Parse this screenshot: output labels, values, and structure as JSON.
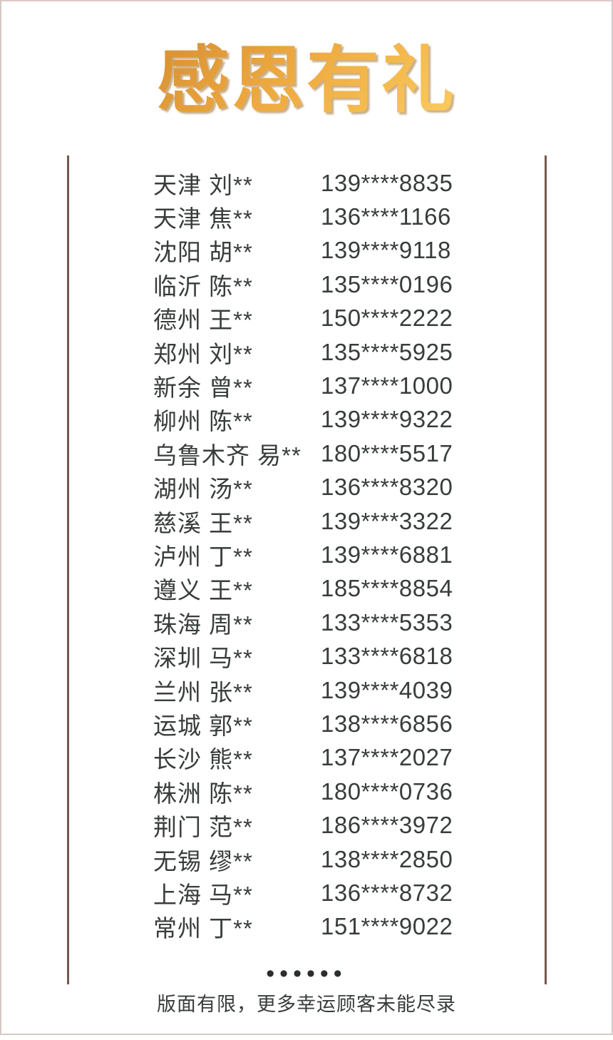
{
  "title": "感恩有礼",
  "list": {
    "rows": [
      {
        "name": "天津 刘**",
        "phone": "139****8835"
      },
      {
        "name": "天津 焦**",
        "phone": "136****1166"
      },
      {
        "name": "沈阳 胡**",
        "phone": "139****9118"
      },
      {
        "name": "临沂 陈**",
        "phone": "135****0196"
      },
      {
        "name": "德州 王**",
        "phone": "150****2222"
      },
      {
        "name": "郑州 刘**",
        "phone": "135****5925"
      },
      {
        "name": "新余 曾**",
        "phone": "137****1000"
      },
      {
        "name": "柳州 陈**",
        "phone": "139****9322"
      },
      {
        "name": "乌鲁木齐 易**",
        "phone": "180****5517"
      },
      {
        "name": "湖州 汤**",
        "phone": "136****8320"
      },
      {
        "name": "慈溪 王**",
        "phone": "139****3322"
      },
      {
        "name": "泸州 丁**",
        "phone": "139****6881"
      },
      {
        "name": "遵义 王**",
        "phone": "185****8854"
      },
      {
        "name": "珠海 周**",
        "phone": "133****5353"
      },
      {
        "name": "深圳 马**",
        "phone": "133****6818"
      },
      {
        "name": "兰州 张**",
        "phone": "139****4039"
      },
      {
        "name": "运城 郭**",
        "phone": "138****6856"
      },
      {
        "name": "长沙 熊**",
        "phone": "137****2027"
      },
      {
        "name": "株洲 陈**",
        "phone": "180****0736"
      },
      {
        "name": "荆门 范**",
        "phone": "186****3972"
      },
      {
        "name": "无锡 缪**",
        "phone": "138****2850"
      },
      {
        "name": "上海 马**",
        "phone": "136****8732"
      },
      {
        "name": "常州 丁**",
        "phone": "151****9022"
      }
    ]
  },
  "footer": {
    "ellipsis": "••••••",
    "note": "版面有限，更多幸运顾客未能尽录"
  },
  "colors": {
    "title_gradient_start": "#c8802e",
    "title_gradient_mid": "#eda83e",
    "title_gradient_end": "#ffd96b",
    "text": "#373d3b",
    "rule_line": "#75594b",
    "frame_border": "#d6c8c5",
    "dots": "#2a2e2c"
  }
}
